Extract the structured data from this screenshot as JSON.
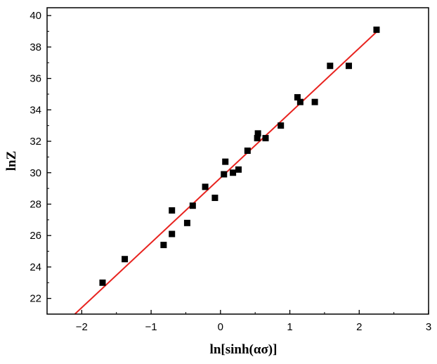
{
  "chart_data": {
    "type": "scatter",
    "xlabel": "ln[sinh(ασ)]",
    "ylabel": "lnZ",
    "xlim": [
      -2.5,
      3
    ],
    "ylim": [
      21,
      40.5
    ],
    "xticks": [
      -2,
      -1,
      0,
      1,
      2,
      3
    ],
    "yticks": [
      22,
      24,
      26,
      28,
      30,
      32,
      34,
      36,
      38,
      40
    ],
    "grid": false,
    "legend": "none",
    "colors": {
      "points": "#000000",
      "fit_line": "#e8231f",
      "axes": "#000000"
    },
    "series": [
      {
        "type": "scatter",
        "x": [
          -1.7,
          -1.38,
          -0.82,
          -0.7,
          -0.7,
          -0.48,
          -0.4,
          -0.22,
          -0.08,
          0.05,
          0.07,
          0.18,
          0.26,
          0.39,
          0.53,
          0.54,
          0.65,
          0.87,
          1.11,
          1.15,
          1.36,
          1.58,
          1.85,
          2.25
        ],
        "y": [
          23.0,
          24.5,
          25.4,
          26.1,
          27.6,
          26.8,
          27.9,
          29.1,
          28.4,
          29.9,
          30.7,
          30.0,
          30.2,
          31.4,
          32.2,
          32.5,
          32.2,
          33.0,
          34.8,
          34.5,
          34.5,
          36.8,
          36.8,
          39.1
        ]
      },
      {
        "type": "line",
        "x": [
          -2.1,
          2.26
        ],
        "y": [
          21.0,
          39.0
        ]
      }
    ]
  }
}
